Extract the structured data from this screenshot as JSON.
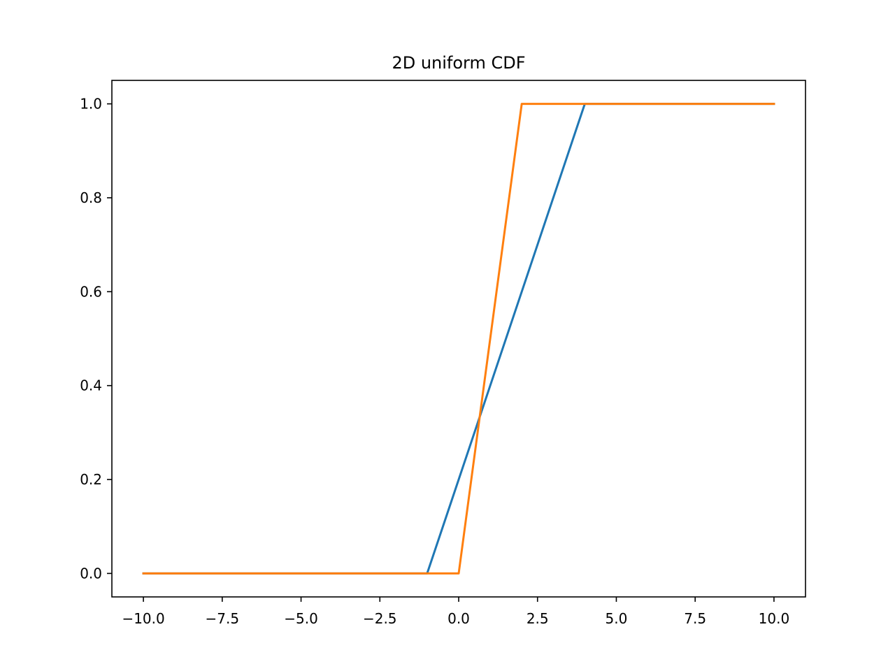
{
  "chart_data": {
    "type": "line",
    "title": "2D uniform CDF",
    "xlabel": "",
    "ylabel": "",
    "xlim": [
      -11.0,
      11.0
    ],
    "ylim": [
      -0.05,
      1.05
    ],
    "grid": false,
    "x_ticks": [
      -10.0,
      -7.5,
      -5.0,
      -2.5,
      0.0,
      2.5,
      5.0,
      7.5,
      10.0
    ],
    "x_tick_labels": [
      "−10.0",
      "−7.5",
      "−5.0",
      "−2.5",
      "0.0",
      "2.5",
      "5.0",
      "7.5",
      "10.0"
    ],
    "y_ticks": [
      0.0,
      0.2,
      0.4,
      0.6,
      0.8,
      1.0
    ],
    "y_tick_labels": [
      "0.0",
      "0.2",
      "0.4",
      "0.6",
      "0.8",
      "1.0"
    ],
    "series": [
      {
        "color": "#1f77b4",
        "x": [
          -10.0,
          -1.0,
          4.0,
          10.0
        ],
        "y": [
          0.0,
          0.0,
          1.0,
          1.0
        ]
      },
      {
        "color": "#ff7f0e",
        "x": [
          -10.0,
          0.0,
          2.0,
          10.0
        ],
        "y": [
          0.0,
          0.0,
          1.0,
          1.0
        ]
      }
    ]
  }
}
